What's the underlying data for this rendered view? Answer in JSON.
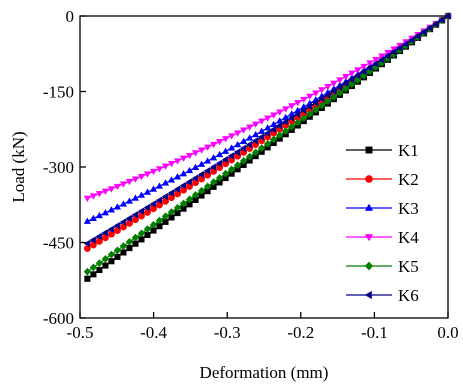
{
  "chart_data": {
    "type": "line",
    "title": "",
    "xlabel": "Deformation (mm)",
    "ylabel": "Load (kN)",
    "xlim": [
      -0.5,
      0.0
    ],
    "ylim": [
      -600,
      0
    ],
    "x_ticks": [
      -0.5,
      -0.4,
      -0.3,
      -0.2,
      -0.1,
      0.0
    ],
    "x_tick_labels": [
      "-0.5",
      "-0.4",
      "-0.3",
      "-0.2",
      "-0.1",
      "0.0"
    ],
    "y_ticks": [
      0,
      -150,
      -300,
      -450,
      -600
    ],
    "y_tick_labels": [
      "0",
      "-150",
      "-300",
      "-450",
      "-600"
    ],
    "x_range": [
      -0.49,
      0.0
    ],
    "grid": false,
    "legend_position": "right",
    "series": [
      {
        "name": "K1",
        "color": "#000000",
        "marker": "square",
        "end_value": -522,
        "curvature": 0
      },
      {
        "name": "K2",
        "color": "#ff0000",
        "marker": "circle",
        "end_value": -462,
        "curvature": 0.08
      },
      {
        "name": "K3",
        "color": "#0000ff",
        "marker": "triangle-up",
        "end_value": -408,
        "curvature": 0.18
      },
      {
        "name": "K4",
        "color": "#ff00ff",
        "marker": "triangle-down",
        "end_value": -362,
        "curvature": 0.24
      },
      {
        "name": "K5",
        "color": "#008000",
        "marker": "diamond",
        "end_value": -508,
        "curvature": 0
      },
      {
        "name": "K6",
        "color": "#00008b",
        "marker": "triangle-left",
        "end_value": -452,
        "curvature": 0.06
      }
    ]
  }
}
